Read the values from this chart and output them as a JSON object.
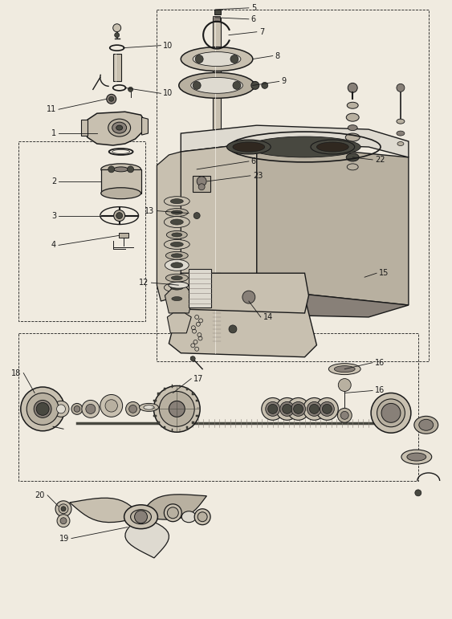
{
  "bg_color": "#f0ebe0",
  "line_color": "#1a1a1a",
  "figsize": [
    5.63,
    7.71
  ],
  "dpi": 100,
  "gray_dark": "#484840",
  "gray_mid": "#888078",
  "gray_light": "#c8c0b0",
  "gray_lighter": "#dedad0",
  "gray_body": "#b8b0a0",
  "white": "#f4f0e8"
}
